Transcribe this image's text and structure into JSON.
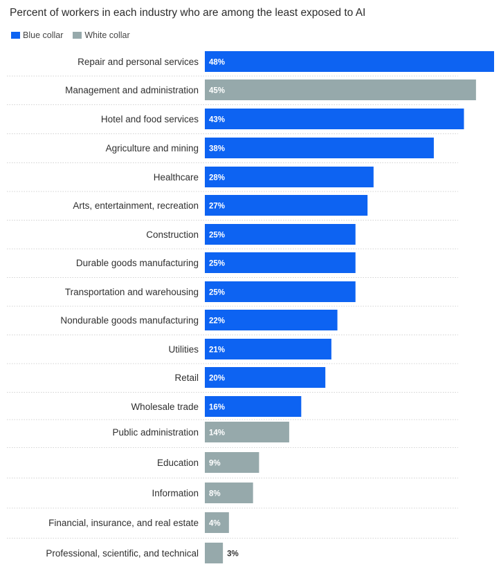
{
  "chart_data": {
    "type": "bar",
    "orientation": "horizontal",
    "title": "Percent of workers in each industry who are among the least exposed to AI",
    "xlabel": "",
    "ylabel": "",
    "xlim": [
      0,
      48
    ],
    "grid": false,
    "legend": [
      {
        "name": "Blue collar",
        "color": "#0d63f2"
      },
      {
        "name": "White collar",
        "color": "#96a9ab"
      }
    ],
    "legend_position": "top-left",
    "categories": [
      "Repair and personal services",
      "Management and administration",
      "Hotel and food services",
      "Agriculture and mining",
      "Healthcare",
      "Arts, entertainment, recreation",
      "Construction",
      "Durable goods manufacturing",
      "Transportation and warehousing",
      "Nondurable goods manufacturing",
      "Utilities",
      "Retail",
      "Wholesale trade",
      "Public administration",
      "Education",
      "Information",
      "Financial, insurance, and real estate",
      "Professional, scientific, and technical"
    ],
    "values": [
      48,
      45,
      43,
      38,
      28,
      27,
      25,
      25,
      25,
      22,
      21,
      20,
      16,
      14,
      9,
      8,
      4,
      3
    ],
    "value_labels": [
      "48%",
      "45%",
      "43%",
      "38%",
      "28%",
      "27%",
      "25%",
      "25%",
      "25%",
      "22%",
      "21%",
      "20%",
      "16%",
      "14%",
      "9%",
      "8%",
      "4%",
      "3%"
    ],
    "groups": [
      "Blue collar",
      "White collar",
      "Blue collar",
      "Blue collar",
      "Blue collar",
      "Blue collar",
      "Blue collar",
      "Blue collar",
      "Blue collar",
      "Blue collar",
      "Blue collar",
      "Blue collar",
      "Blue collar",
      "White collar",
      "White collar",
      "White collar",
      "White collar",
      "White collar"
    ]
  }
}
